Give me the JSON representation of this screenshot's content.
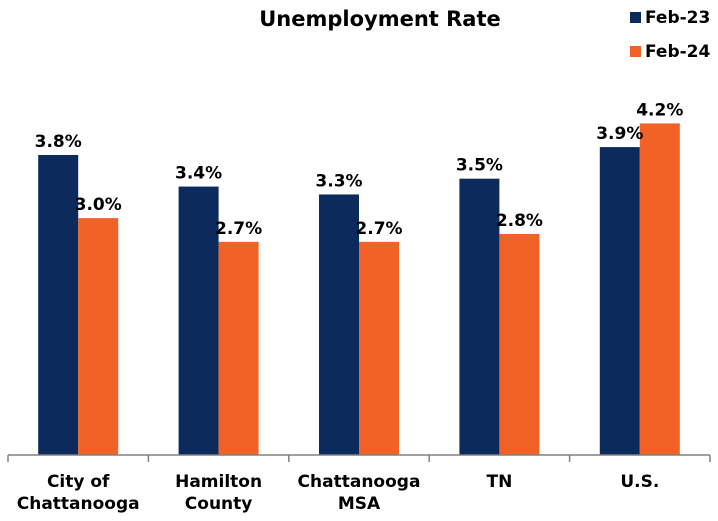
{
  "chart_data": {
    "type": "bar",
    "title": "Unemployment Rate",
    "xlabel": "",
    "ylabel": "",
    "ylim": [
      0,
      4.7
    ],
    "grid": false,
    "legend_position": "top-right",
    "categories": [
      [
        "City of",
        "Chattanooga"
      ],
      [
        "Hamilton",
        "County"
      ],
      [
        "Chattanooga",
        "MSA"
      ],
      [
        "TN"
      ],
      [
        "U.S."
      ]
    ],
    "series": [
      {
        "name": "Feb-23",
        "color": "#0d2a5c",
        "values": [
          3.8,
          3.4,
          3.3,
          3.5,
          3.9
        ],
        "labels": [
          "3.8%",
          "3.4%",
          "3.3%",
          "3.5%",
          "3.9%"
        ]
      },
      {
        "name": "Feb-24",
        "color": "#f26126",
        "values": [
          3.0,
          2.7,
          2.7,
          2.8,
          4.2
        ],
        "labels": [
          "3.0%",
          "2.7%",
          "2.7%",
          "2.8%",
          "4.2%"
        ]
      }
    ]
  }
}
